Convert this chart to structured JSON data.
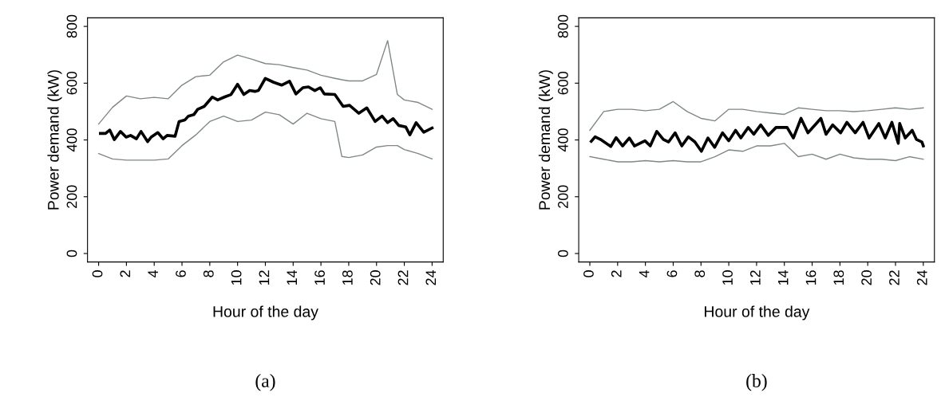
{
  "chart_data": [
    {
      "type": "line",
      "xlabel": "Hour of the day",
      "ylabel": "Power demand (kW)",
      "annotations": [
        "(a)"
      ],
      "xlim": [
        -0.8,
        24.8
      ],
      "ylim": [
        -30,
        830
      ],
      "xticks": [
        0,
        2,
        4,
        6,
        8,
        10,
        12,
        14,
        16,
        18,
        20,
        22,
        24
      ],
      "yticks": [
        0,
        200,
        400,
        600,
        800
      ],
      "grid": false,
      "legend": false,
      "series": [
        {
          "color": "#7f8788",
          "x": [
            0,
            1,
            2,
            3,
            4,
            5,
            6,
            7,
            8,
            9,
            10,
            11,
            12,
            13,
            14,
            15,
            16,
            17,
            17.5,
            18,
            19,
            20,
            20.8,
            21.5,
            22,
            23,
            24
          ],
          "values": [
            352,
            333,
            329,
            329,
            329,
            333,
            380,
            418,
            465,
            484,
            465,
            470,
            498,
            489,
            456,
            494,
            475,
            465,
            342,
            338,
            347,
            375,
            380,
            380,
            366,
            352,
            333
          ]
        },
        {
          "color": "#7f8788",
          "x": [
            0,
            1,
            2,
            3,
            4,
            5,
            6,
            7,
            8,
            9,
            10,
            11,
            12,
            13,
            14,
            15,
            16,
            17,
            17.5,
            18,
            19,
            20,
            20.8,
            21.5,
            22,
            23,
            24
          ],
          "values": [
            456,
            515,
            555,
            545,
            550,
            545,
            593,
            623,
            628,
            675,
            699,
            685,
            669,
            665,
            655,
            646,
            628,
            617,
            612,
            608,
            608,
            631,
            750,
            560,
            541,
            532,
            508
          ]
        },
        {
          "color": "#000000",
          "x": [
            0.13,
            0.5,
            0.8,
            1.13,
            1.57,
            1.98,
            2.3,
            2.72,
            3.05,
            3.53,
            3.78,
            4.26,
            4.64,
            4.93,
            5.5,
            5.79,
            6.2,
            6.46,
            6.85,
            7.13,
            7.6,
            8.18,
            8.57,
            9.05,
            9.53,
            10.0,
            10.45,
            10.87,
            11.25,
            11.5,
            12.0,
            12.6,
            13.17,
            13.74,
            14.2,
            14.7,
            15.1,
            15.56,
            15.95,
            16.24,
            17.0,
            17.6,
            18.06,
            18.73,
            19.3,
            19.9,
            20.4,
            20.8,
            21.2,
            21.6,
            22.1,
            22.4,
            22.85,
            23.4,
            24.0
          ],
          "values": [
            423,
            423,
            435,
            401,
            430,
            410,
            416,
            404,
            430,
            394,
            410,
            426,
            404,
            416,
            413,
            465,
            470,
            484,
            489,
            508,
            518,
            551,
            541,
            551,
            560,
            596,
            560,
            574,
            571,
            574,
            617,
            603,
            593,
            607,
            562,
            584,
            587,
            574,
            584,
            562,
            560,
            518,
            522,
            494,
            513,
            465,
            484,
            461,
            475,
            451,
            446,
            418,
            461,
            427,
            442
          ]
        }
      ]
    },
    {
      "type": "line",
      "xlabel": "Hour of the day",
      "ylabel": "Power demand (kW)",
      "annotations": [
        "(b)"
      ],
      "xlim": [
        -0.8,
        24.8
      ],
      "ylim": [
        -30,
        830
      ],
      "xticks": [
        0,
        2,
        4,
        6,
        8,
        10,
        12,
        14,
        16,
        18,
        20,
        22,
        24
      ],
      "yticks": [
        0,
        200,
        400,
        600,
        800
      ],
      "grid": false,
      "legend": false,
      "series": [
        {
          "color": "#7f8788",
          "x": [
            0,
            1,
            2,
            3,
            4,
            5,
            6,
            7,
            8,
            9,
            10,
            11,
            12,
            13,
            14,
            15,
            16,
            17,
            18,
            19,
            20,
            21,
            22,
            23,
            24
          ],
          "values": [
            341,
            332,
            323,
            323,
            327,
            323,
            327,
            323,
            323,
            341,
            365,
            360,
            379,
            379,
            388,
            341,
            350,
            332,
            350,
            337,
            332,
            332,
            327,
            341,
            332
          ]
        },
        {
          "color": "#7f8788",
          "x": [
            0,
            1,
            2,
            3,
            4,
            5,
            6,
            7,
            8,
            9,
            10,
            11,
            12,
            13,
            14,
            15,
            16,
            17,
            18,
            19,
            20,
            21,
            22,
            23,
            24
          ],
          "values": [
            434,
            500,
            508,
            508,
            503,
            508,
            535,
            500,
            476,
            467,
            508,
            508,
            500,
            495,
            490,
            513,
            508,
            503,
            503,
            500,
            503,
            508,
            513,
            508,
            513
          ]
        },
        {
          "color": "#000000",
          "x": [
            0.1,
            0.38,
            0.76,
            1.51,
            1.89,
            2.36,
            2.84,
            3.21,
            3.97,
            4.35,
            4.82,
            5.29,
            5.67,
            6.14,
            6.62,
            7.09,
            7.56,
            8.03,
            8.5,
            8.98,
            9.55,
            10.0,
            10.49,
            10.87,
            11.4,
            11.8,
            12.3,
            12.85,
            13.4,
            14.2,
            14.65,
            15.2,
            15.7,
            16.63,
            17.0,
            17.48,
            18.05,
            18.5,
            19.1,
            19.66,
            20.1,
            20.8,
            21.26,
            21.74,
            22.2,
            22.3,
            22.7,
            23.2,
            23.5,
            23.9,
            24.0
          ],
          "values": [
            395,
            411,
            402,
            377,
            408,
            379,
            407,
            379,
            397,
            379,
            430,
            402,
            393,
            425,
            379,
            411,
            393,
            360,
            407,
            374,
            425,
            397,
            434,
            407,
            444,
            420,
            453,
            416,
            444,
            444,
            407,
            476,
            425,
            476,
            420,
            453,
            425,
            462,
            425,
            462,
            407,
            458,
            407,
            462,
            388,
            458,
            407,
            434,
            402,
            393,
            379
          ]
        }
      ]
    }
  ]
}
